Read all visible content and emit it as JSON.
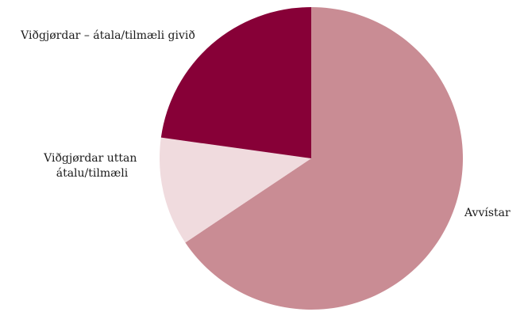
{
  "chart_data": {
    "type": "pie",
    "title": "",
    "start_angle_deg": 0,
    "direction": "clockwise",
    "legend": "none",
    "slices": [
      {
        "label": "Avvístar",
        "value": 65.6,
        "color": "#c98c94"
      },
      {
        "label": "Viðgjørdar uttan átalu/tilmæli",
        "label_lines": [
          "Viðgjørdar uttan",
          "átalu/tilmæli"
        ],
        "value": 11.6,
        "color": "#f0dbde"
      },
      {
        "label": "Viðgjørdar – átala/tilmæli givið",
        "value": 22.8,
        "color": "#870037"
      }
    ]
  }
}
